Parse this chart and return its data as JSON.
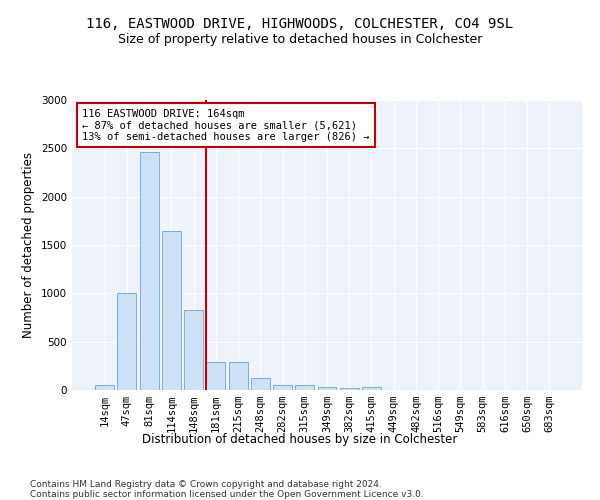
{
  "title": "116, EASTWOOD DRIVE, HIGHWOODS, COLCHESTER, CO4 9SL",
  "subtitle": "Size of property relative to detached houses in Colchester",
  "xlabel": "Distribution of detached houses by size in Colchester",
  "ylabel": "Number of detached properties",
  "categories": [
    "14sqm",
    "47sqm",
    "81sqm",
    "114sqm",
    "148sqm",
    "181sqm",
    "215sqm",
    "248sqm",
    "282sqm",
    "315sqm",
    "349sqm",
    "382sqm",
    "415sqm",
    "449sqm",
    "482sqm",
    "516sqm",
    "549sqm",
    "583sqm",
    "616sqm",
    "650sqm",
    "683sqm"
  ],
  "values": [
    55,
    1000,
    2460,
    1640,
    830,
    290,
    290,
    120,
    50,
    50,
    35,
    20,
    30,
    0,
    0,
    0,
    0,
    0,
    0,
    0,
    0
  ],
  "bar_color": "#cde0f5",
  "bar_edge_color": "#7bafd4",
  "vline_color": "#c00000",
  "vline_pos": 4.57,
  "annotation_text": "116 EASTWOOD DRIVE: 164sqm\n← 87% of detached houses are smaller (5,621)\n13% of semi-detached houses are larger (826) →",
  "annotation_box_color": "white",
  "annotation_box_edge_color": "#c00000",
  "ylim": [
    0,
    3000
  ],
  "yticks": [
    0,
    500,
    1000,
    1500,
    2000,
    2500,
    3000
  ],
  "footer": "Contains HM Land Registry data © Crown copyright and database right 2024.\nContains public sector information licensed under the Open Government Licence v3.0.",
  "title_fontsize": 10,
  "subtitle_fontsize": 9,
  "xlabel_fontsize": 8.5,
  "ylabel_fontsize": 8.5,
  "tick_fontsize": 7.5,
  "annotation_fontsize": 7.5,
  "footer_fontsize": 6.5,
  "background_color": "#edf2fb"
}
